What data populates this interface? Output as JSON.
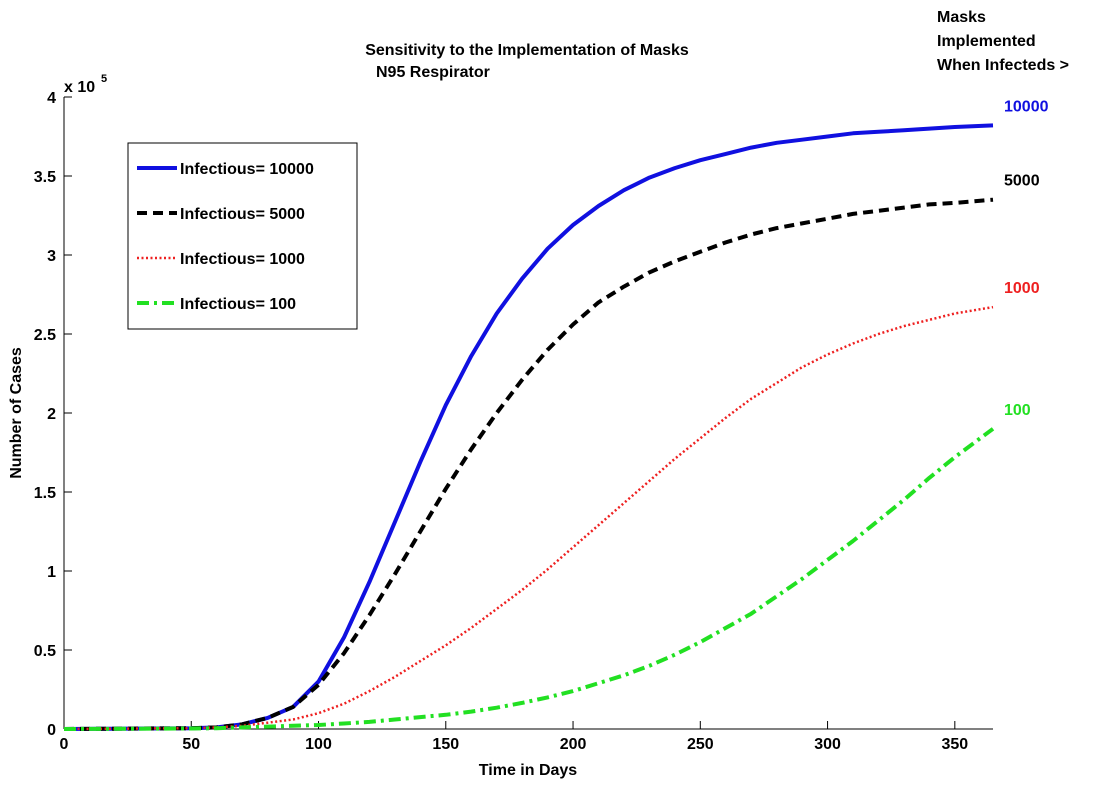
{
  "chart_data": {
    "type": "line",
    "title": "Sensitivity to the Implementation of Masks",
    "subtitle": "N95 Respirator",
    "xlabel": "Time in Days",
    "ylabel": "Number of Cases",
    "y_exponent_base": "x 10",
    "y_exponent_power": "5",
    "xlim": [
      0,
      365
    ],
    "ylim": [
      0,
      4
    ],
    "x_ticks": [
      "0",
      "50",
      "100",
      "150",
      "200",
      "250",
      "300",
      "350"
    ],
    "y_ticks": [
      "0",
      "0.5",
      "1",
      "1.5",
      "2",
      "2.5",
      "3",
      "3.5",
      "4"
    ],
    "grid": false,
    "legend_position": "top-left",
    "annotation_lines": [
      "Masks",
      "Implemented",
      "When Infecteds >"
    ],
    "series": [
      {
        "name": "Infectious= 10000",
        "end_label": "10000",
        "color": "#1010e0",
        "style": "solid",
        "x": [
          0,
          50,
          60,
          70,
          80,
          90,
          100,
          110,
          120,
          130,
          140,
          150,
          160,
          170,
          180,
          190,
          200,
          210,
          220,
          230,
          240,
          250,
          260,
          270,
          280,
          290,
          300,
          310,
          320,
          330,
          340,
          350,
          365
        ],
        "y": [
          0,
          0.005,
          0.01,
          0.03,
          0.07,
          0.14,
          0.3,
          0.58,
          0.93,
          1.31,
          1.69,
          2.05,
          2.36,
          2.63,
          2.85,
          3.04,
          3.19,
          3.31,
          3.41,
          3.49,
          3.55,
          3.6,
          3.64,
          3.68,
          3.71,
          3.73,
          3.75,
          3.77,
          3.78,
          3.79,
          3.8,
          3.81,
          3.82
        ]
      },
      {
        "name": "Infectious= 5000",
        "end_label": "5000",
        "color": "#000000",
        "style": "dashed",
        "x": [
          0,
          50,
          60,
          70,
          80,
          90,
          100,
          110,
          120,
          130,
          140,
          150,
          160,
          170,
          180,
          190,
          200,
          210,
          220,
          230,
          240,
          250,
          260,
          270,
          280,
          290,
          300,
          310,
          320,
          330,
          340,
          350,
          365
        ],
        "y": [
          0,
          0.005,
          0.01,
          0.03,
          0.07,
          0.14,
          0.28,
          0.48,
          0.72,
          0.98,
          1.25,
          1.52,
          1.77,
          2.0,
          2.21,
          2.4,
          2.56,
          2.7,
          2.8,
          2.89,
          2.96,
          3.02,
          3.08,
          3.13,
          3.17,
          3.2,
          3.23,
          3.26,
          3.28,
          3.3,
          3.32,
          3.33,
          3.35
        ]
      },
      {
        "name": "Infectious= 1000",
        "end_label": "1000",
        "color": "#ee2020",
        "style": "dotted",
        "x": [
          0,
          50,
          60,
          70,
          80,
          90,
          100,
          110,
          120,
          130,
          140,
          150,
          160,
          170,
          180,
          190,
          200,
          210,
          220,
          230,
          240,
          250,
          260,
          270,
          280,
          290,
          300,
          310,
          320,
          330,
          340,
          350,
          365
        ],
        "y": [
          0,
          0.005,
          0.01,
          0.02,
          0.04,
          0.06,
          0.1,
          0.16,
          0.24,
          0.33,
          0.43,
          0.53,
          0.64,
          0.76,
          0.88,
          1.01,
          1.15,
          1.29,
          1.43,
          1.57,
          1.71,
          1.84,
          1.97,
          2.09,
          2.19,
          2.29,
          2.37,
          2.44,
          2.5,
          2.55,
          2.59,
          2.63,
          2.67
        ]
      },
      {
        "name": "Infectious= 100",
        "end_label": "100",
        "color": "#22e022",
        "style": "dashdot",
        "x": [
          0,
          50,
          60,
          70,
          80,
          90,
          100,
          110,
          120,
          130,
          140,
          150,
          160,
          170,
          180,
          190,
          200,
          210,
          220,
          230,
          240,
          250,
          260,
          270,
          280,
          290,
          300,
          310,
          320,
          330,
          340,
          350,
          365
        ],
        "y": [
          0,
          0.003,
          0.005,
          0.01,
          0.015,
          0.02,
          0.025,
          0.035,
          0.045,
          0.06,
          0.075,
          0.09,
          0.11,
          0.135,
          0.165,
          0.2,
          0.24,
          0.29,
          0.34,
          0.4,
          0.47,
          0.55,
          0.64,
          0.73,
          0.84,
          0.95,
          1.07,
          1.19,
          1.32,
          1.45,
          1.59,
          1.72,
          1.9
        ]
      }
    ]
  }
}
